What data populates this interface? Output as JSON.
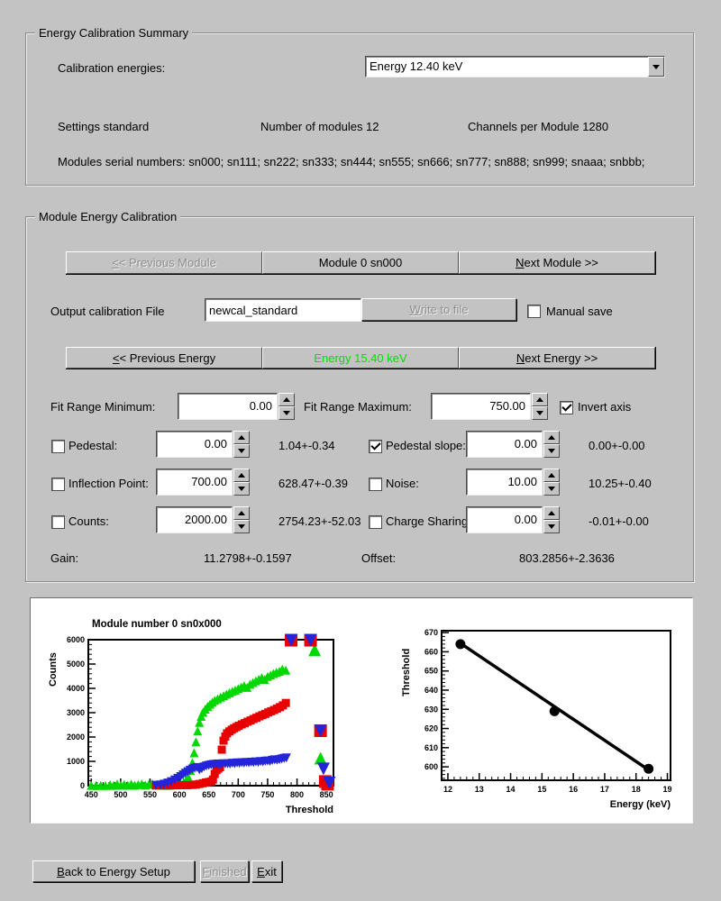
{
  "summary": {
    "title": "Energy Calibration Summary",
    "calibration_energies_label": "Calibration energies:",
    "energy_dropdown_value": "Energy 12.40 keV",
    "settings": "Settings standard",
    "num_modules": "Number of modules 12",
    "channels": "Channels per Module 1280",
    "serials": "Modules serial numbers: sn000; sn111; sn222; sn333; sn444; sn555; sn666; sn777; sn888; sn999; snaaa; snbbb;"
  },
  "module_cal": {
    "title": "Module Energy Calibration",
    "prev_module": "<< Previous Module",
    "module_label": "Module 0 sn000",
    "next_module": "Next Module >>",
    "output_file_label": "Output calibration File",
    "output_file_value": "newcal_standard",
    "write_button": "Write to file",
    "manual_save_label": "Manual save",
    "manual_save_checked": false,
    "prev_energy": "<< Previous Energy",
    "energy_label": "Energy 15.40 keV",
    "energy_color": "#00e000",
    "next_energy": "Next Energy >>",
    "fit_min_label": "Fit Range Minimum:",
    "fit_min_value": "0.00",
    "fit_max_label": "Fit Range Maximum:",
    "fit_max_value": "750.00",
    "invert_axis_label": "Invert axis",
    "invert_axis_checked": true,
    "rows": [
      {
        "check": false,
        "label": "Pedestal:",
        "value": "0.00",
        "result": "1.04+-0.34",
        "check2": true,
        "label2": "Pedestal slope:",
        "value2": "0.00",
        "result2": "0.00+-0.00"
      },
      {
        "check": false,
        "label": "Inflection Point:",
        "value": "700.00",
        "result": "628.47+-0.39",
        "check2": false,
        "label2": "Noise:",
        "value2": "10.00",
        "result2": "10.25+-0.40"
      },
      {
        "check": false,
        "label": "Counts:",
        "value": "2000.00",
        "result": "2754.23+-52.03",
        "check2": false,
        "label2": "Charge Sharing",
        "value2": "0.00",
        "result2": "-0.01+-0.00"
      }
    ],
    "gain_label": "Gain:",
    "gain_value": "11.2798+-0.1597",
    "offset_label": "Offset:",
    "offset_value": "803.2856+-2.3636"
  },
  "footer": {
    "back": "Back to Energy Setup",
    "finished": "Finished",
    "exit": "Exit"
  },
  "chart_data": [
    {
      "type": "scatter",
      "title": "Module number 0 sn0x000",
      "xlabel": "Threshold",
      "ylabel": "Counts",
      "xlim": [
        445,
        862
      ],
      "ylim": [
        0,
        6000
      ],
      "xticks": [
        450,
        500,
        550,
        600,
        650,
        700,
        750,
        800,
        850
      ],
      "yticks": [
        0,
        1000,
        2000,
        3000,
        4000,
        5000,
        6000
      ],
      "xminor": 10,
      "yminor": 200,
      "grid": false,
      "legend": "none",
      "series": [
        {
          "name": "scurve-green",
          "marker": "triangle-up",
          "color": "#00d800",
          "size": 5,
          "points": [
            [
              450,
              15
            ],
            [
              458,
              8
            ],
            [
              466,
              12
            ],
            [
              474,
              8
            ],
            [
              482,
              40
            ],
            [
              488,
              15
            ],
            [
              494,
              70
            ],
            [
              500,
              20
            ],
            [
              506,
              55
            ],
            [
              512,
              18
            ],
            [
              518,
              65
            ],
            [
              524,
              20
            ],
            [
              530,
              45
            ],
            [
              536,
              75
            ],
            [
              542,
              25
            ],
            [
              548,
              60
            ],
            [
              554,
              85
            ],
            [
              560,
              40
            ],
            [
              566,
              25
            ],
            [
              572,
              18
            ],
            [
              578,
              15
            ],
            [
              584,
              22
            ],
            [
              590,
              35
            ],
            [
              596,
              45
            ],
            [
              602,
              85
            ],
            [
              607,
              130
            ],
            [
              611,
              210
            ],
            [
              615,
              360
            ],
            [
              619,
              620
            ],
            [
              622,
              950
            ],
            [
              625,
              1350
            ],
            [
              628,
              1800
            ],
            [
              631,
              2250
            ],
            [
              634,
              2600
            ],
            [
              637,
              2850
            ],
            [
              640,
              3020
            ],
            [
              644,
              3150
            ],
            [
              648,
              3260
            ],
            [
              652,
              3350
            ],
            [
              656,
              3430
            ],
            [
              660,
              3510
            ],
            [
              665,
              3570
            ],
            [
              670,
              3640
            ],
            [
              675,
              3700
            ],
            [
              680,
              3760
            ],
            [
              685,
              3820
            ],
            [
              690,
              3880
            ],
            [
              695,
              3930
            ],
            [
              700,
              3990
            ],
            [
              705,
              4050
            ],
            [
              710,
              4110
            ],
            [
              715,
              4040
            ],
            [
              720,
              4170
            ],
            [
              725,
              4240
            ],
            [
              730,
              4310
            ],
            [
              735,
              4370
            ],
            [
              740,
              4440
            ],
            [
              745,
              4370
            ],
            [
              750,
              4490
            ],
            [
              755,
              4550
            ],
            [
              760,
              4610
            ],
            [
              765,
              4660
            ],
            [
              770,
              4700
            ],
            [
              775,
              4790
            ],
            [
              781,
              4750
            ]
          ]
        },
        {
          "name": "green-overflow",
          "marker": "triangle-up",
          "color": "#00d800",
          "size": 7,
          "points": [
            [
              790,
              5980
            ],
            [
              823,
              5980
            ],
            [
              830,
              5580
            ],
            [
              840,
              1130
            ]
          ]
        },
        {
          "name": "scurve-red",
          "marker": "square",
          "color": "#e80000",
          "size": 4.5,
          "points": [
            [
              560,
              8
            ],
            [
              572,
              10
            ],
            [
              584,
              12
            ],
            [
              596,
              15
            ],
            [
              606,
              18
            ],
            [
              614,
              22
            ],
            [
              622,
              30
            ],
            [
              628,
              45
            ],
            [
              634,
              70
            ],
            [
              640,
              100
            ],
            [
              645,
              130
            ],
            [
              650,
              150
            ],
            [
              654,
              170
            ],
            [
              657,
              250
            ],
            [
              660,
              480
            ],
            [
              663,
              640
            ],
            [
              666,
              700
            ],
            [
              669,
              760
            ],
            [
              672,
              1480
            ],
            [
              675,
              1850
            ],
            [
              678,
              2020
            ],
            [
              681,
              2150
            ],
            [
              685,
              2230
            ],
            [
              689,
              2300
            ],
            [
              693,
              2360
            ],
            [
              697,
              2410
            ],
            [
              701,
              2460
            ],
            [
              706,
              2520
            ],
            [
              711,
              2570
            ],
            [
              716,
              2630
            ],
            [
              721,
              2680
            ],
            [
              726,
              2740
            ],
            [
              731,
              2790
            ],
            [
              736,
              2850
            ],
            [
              741,
              2900
            ],
            [
              746,
              2950
            ],
            [
              751,
              3010
            ],
            [
              756,
              3060
            ],
            [
              761,
              3110
            ],
            [
              766,
              3170
            ],
            [
              771,
              3230
            ],
            [
              776,
              3300
            ],
            [
              781,
              3400
            ]
          ]
        },
        {
          "name": "red-overflow",
          "marker": "square",
          "color": "#e80000",
          "size": 7,
          "points": [
            [
              790,
              5980
            ],
            [
              823,
              5980
            ],
            [
              840,
              2260
            ],
            [
              848,
              170
            ],
            [
              852,
              60
            ]
          ]
        },
        {
          "name": "scurve-blue",
          "marker": "triangle-down",
          "color": "#2424d8",
          "size": 5,
          "points": [
            [
              560,
              12
            ],
            [
              568,
              30
            ],
            [
              574,
              60
            ],
            [
              580,
              105
            ],
            [
              586,
              160
            ],
            [
              592,
              230
            ],
            [
              597,
              300
            ],
            [
              602,
              370
            ],
            [
              606,
              440
            ],
            [
              610,
              510
            ],
            [
              614,
              570
            ],
            [
              618,
              630
            ],
            [
              622,
              680
            ],
            [
              626,
              715
            ],
            [
              630,
              745
            ],
            [
              634,
              650
            ],
            [
              638,
              700
            ],
            [
              642,
              770
            ],
            [
              646,
              810
            ],
            [
              650,
              835
            ],
            [
              654,
              855
            ],
            [
              658,
              870
            ],
            [
              662,
              880
            ],
            [
              666,
              890
            ],
            [
              670,
              880
            ],
            [
              674,
              900
            ],
            [
              678,
              895
            ],
            [
              682,
              905
            ],
            [
              686,
              890
            ],
            [
              690,
              920
            ],
            [
              694,
              905
            ],
            [
              698,
              935
            ],
            [
              702,
              920
            ],
            [
              706,
              945
            ],
            [
              710,
              930
            ],
            [
              714,
              955
            ],
            [
              718,
              940
            ],
            [
              722,
              965
            ],
            [
              726,
              950
            ],
            [
              730,
              975
            ],
            [
              734,
              960
            ],
            [
              738,
              990
            ],
            [
              742,
              975
            ],
            [
              746,
              1005
            ],
            [
              750,
              1015
            ],
            [
              754,
              1000
            ],
            [
              758,
              1040
            ],
            [
              762,
              1060
            ],
            [
              766,
              1045
            ],
            [
              770,
              1070
            ],
            [
              774,
              1095
            ],
            [
              778,
              1120
            ],
            [
              782,
              1140
            ]
          ]
        },
        {
          "name": "blue-overflow",
          "marker": "triangle-down",
          "color": "#2424d8",
          "size": 7,
          "points": [
            [
              790,
              5980
            ],
            [
              823,
              5980
            ],
            [
              840,
              2250
            ],
            [
              845,
              690
            ],
            [
              855,
              110
            ]
          ]
        }
      ]
    },
    {
      "type": "line",
      "title": "",
      "xlabel": "Energy (keV)",
      "ylabel": "Threshold",
      "xlim": [
        11.8,
        19.1
      ],
      "ylim": [
        593,
        671
      ],
      "xticks": [
        12,
        13,
        14,
        15,
        16,
        17,
        18,
        19
      ],
      "yticks": [
        600,
        610,
        620,
        630,
        640,
        650,
        660,
        670
      ],
      "xminor": 0.2,
      "yminor": 2,
      "grid": false,
      "legend": "none",
      "series": [
        {
          "name": "fit-line",
          "line": true,
          "color": "#000000",
          "width": 3.5,
          "points": [
            [
              12.33,
              665.2
            ],
            [
              18.5,
              597.3
            ]
          ]
        },
        {
          "name": "calibration-points",
          "marker": "circle",
          "color": "#000000",
          "size": 5.5,
          "points": [
            [
              12.4,
              664
            ],
            [
              15.4,
              629
            ],
            [
              18.4,
              599
            ]
          ]
        }
      ]
    }
  ]
}
